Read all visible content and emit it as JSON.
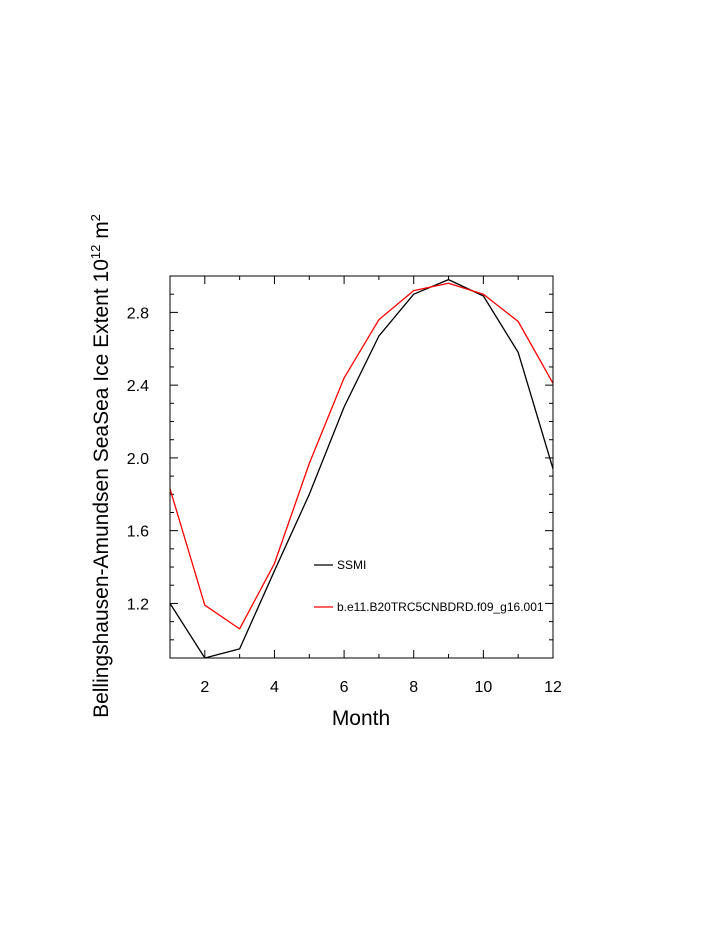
{
  "chart_data": {
    "type": "line",
    "xlabel": "Month",
    "ylabel_main": "Bellingshausen-Amundsen SeaSea Ice Extent 10",
    "ylabel_sup1": "12",
    "ylabel_unit": " m",
    "ylabel_sup2": "2",
    "xlim": [
      1,
      12
    ],
    "ylim": [
      0.9,
      3.0
    ],
    "xticks": [
      2,
      4,
      6,
      8,
      10,
      12
    ],
    "yticks": [
      1.2,
      1.6,
      2.0,
      2.4,
      2.8
    ],
    "ytick_labels": [
      "1.2",
      "1.6",
      "2.0",
      "2.4",
      "2.8"
    ],
    "x": [
      1,
      2,
      3,
      4,
      5,
      6,
      7,
      8,
      9,
      10,
      11,
      12
    ],
    "series": [
      {
        "name": "SSMI",
        "color": "#000000",
        "values": [
          1.2,
          0.9,
          0.95,
          1.38,
          1.8,
          2.28,
          2.67,
          2.9,
          2.98,
          2.89,
          2.58,
          1.94
        ]
      },
      {
        "name": "b.e11.B20TRC5CNBDRD.f09_g16.001",
        "color": "#ff0000",
        "values": [
          1.83,
          1.19,
          1.06,
          1.42,
          1.97,
          2.44,
          2.76,
          2.92,
          2.96,
          2.9,
          2.75,
          2.41
        ]
      }
    ],
    "legend_placement": "inside, lower-right",
    "grid": false
  }
}
